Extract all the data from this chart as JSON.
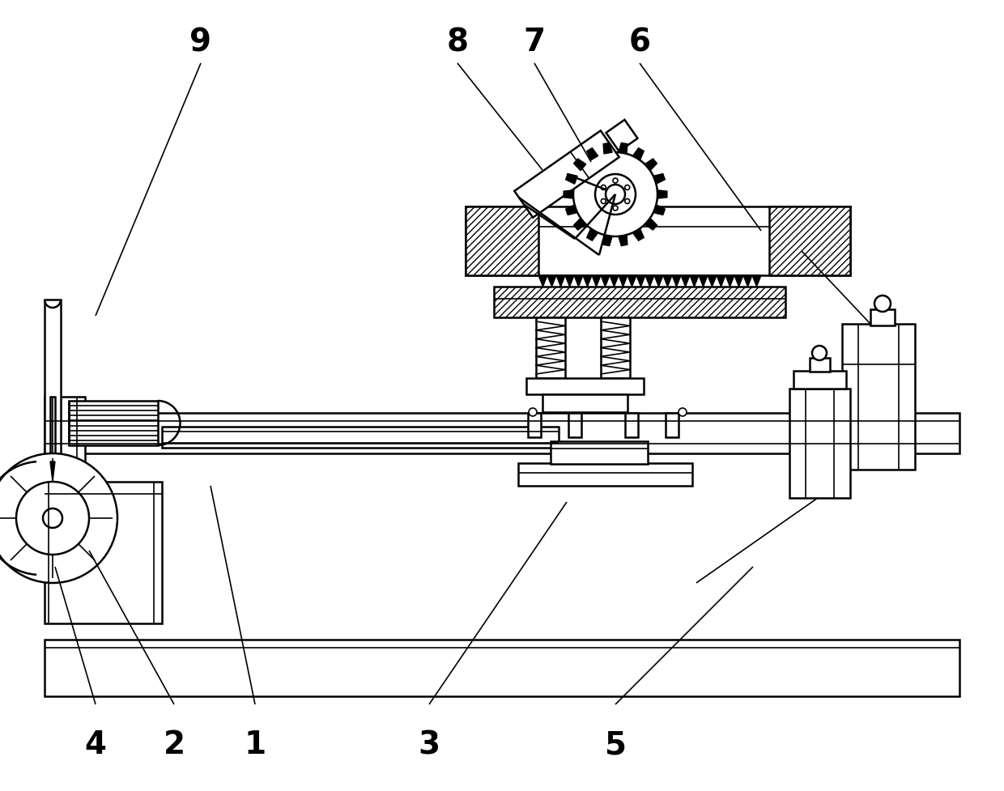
{
  "bg_color": "#ffffff",
  "line_color": "#000000",
  "label_color": "#000000",
  "figsize": [
    12.4,
    9.77
  ],
  "dpi": 100
}
